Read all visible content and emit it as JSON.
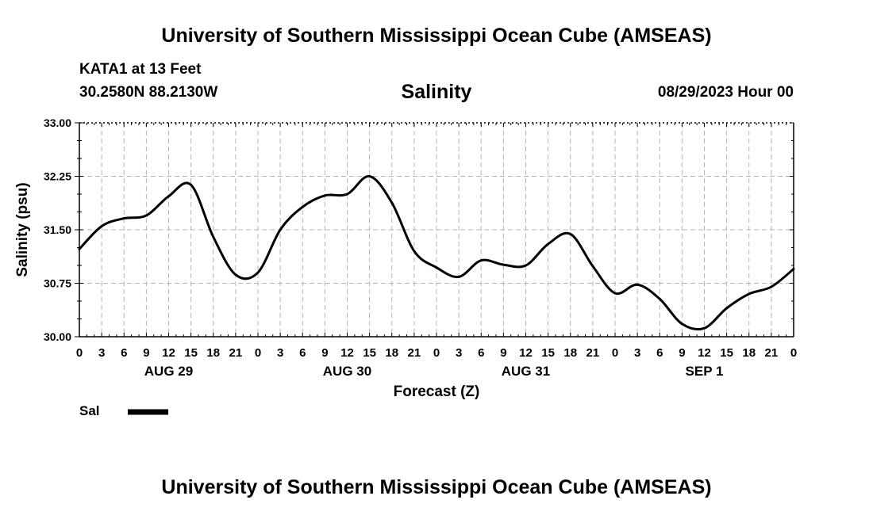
{
  "header": {
    "title": "University of Southern Mississippi Ocean Cube (AMSEAS)",
    "station": "KATA1 at 13 Feet",
    "coords": "30.2580N  88.2130W",
    "variable": "Salinity",
    "init_time": "08/29/2023 Hour 00"
  },
  "footer": {
    "title": "University of Southern Mississippi Ocean Cube (AMSEAS)"
  },
  "legend": {
    "label": "Sal",
    "color": "#000000"
  },
  "chart_data": {
    "type": "line",
    "title": "Salinity",
    "xlabel": "Forecast (Z)",
    "ylabel": "Salinity (psu)",
    "xlim": [
      0,
      96
    ],
    "ylim": [
      30.0,
      33.0
    ],
    "yticks": [
      "30.00",
      "30.75",
      "31.50",
      "32.25",
      "33.00"
    ],
    "ytick_values": [
      30.0,
      30.75,
      31.5,
      32.25,
      33.0
    ],
    "xtick_hours": [
      0,
      3,
      6,
      9,
      12,
      15,
      18,
      21,
      24,
      27,
      30,
      33,
      36,
      39,
      42,
      45,
      48,
      51,
      54,
      57,
      60,
      63,
      66,
      69,
      72,
      75,
      78,
      81,
      84,
      87,
      90,
      93,
      96
    ],
    "xtick_labels": [
      "0",
      "3",
      "6",
      "9",
      "12",
      "15",
      "18",
      "21",
      "0",
      "3",
      "6",
      "9",
      "12",
      "15",
      "18",
      "21",
      "0",
      "3",
      "6",
      "9",
      "12",
      "15",
      "18",
      "21",
      "0",
      "3",
      "6",
      "9",
      "12",
      "15",
      "18",
      "21",
      "0"
    ],
    "date_labels": [
      {
        "hour": 12,
        "label": "AUG 29"
      },
      {
        "hour": 36,
        "label": "AUG 30"
      },
      {
        "hour": 60,
        "label": "AUG 31"
      },
      {
        "hour": 84,
        "label": "SEP 1"
      }
    ],
    "grid": true,
    "series": [
      {
        "name": "Sal",
        "color": "#000000",
        "x": [
          0,
          3,
          6,
          9,
          12,
          15,
          18,
          21,
          24,
          27,
          30,
          33,
          36,
          39,
          42,
          45,
          48,
          51,
          54,
          57,
          60,
          63,
          66,
          69,
          72,
          75,
          78,
          81,
          84,
          87,
          90,
          93,
          96
        ],
        "values": [
          31.23,
          31.55,
          31.66,
          31.7,
          31.97,
          32.13,
          31.4,
          30.87,
          30.9,
          31.5,
          31.82,
          31.98,
          32.0,
          32.25,
          31.88,
          31.2,
          30.97,
          30.84,
          31.07,
          31.01,
          31.0,
          31.3,
          31.44,
          30.99,
          30.61,
          30.73,
          30.53,
          30.18,
          30.12,
          30.4,
          30.6,
          30.7,
          30.95
        ]
      }
    ]
  }
}
